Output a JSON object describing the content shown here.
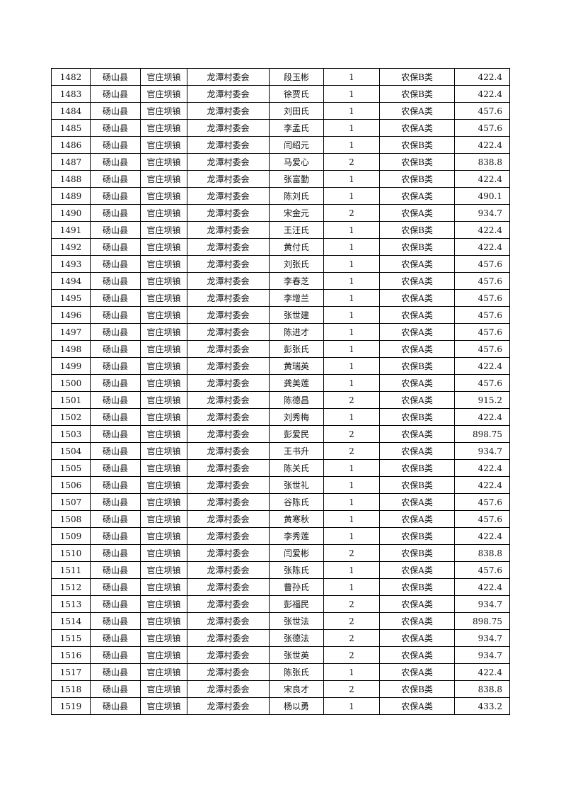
{
  "table": {
    "rows": [
      [
        "1482",
        "砀山县",
        "官庄坝镇",
        "龙潭村委会",
        "段玉彬",
        "1",
        "农保B类",
        "422.4"
      ],
      [
        "1483",
        "砀山县",
        "官庄坝镇",
        "龙潭村委会",
        "徐贾氏",
        "1",
        "农保B类",
        "422.4"
      ],
      [
        "1484",
        "砀山县",
        "官庄坝镇",
        "龙潭村委会",
        "刘田氏",
        "1",
        "农保A类",
        "457.6"
      ],
      [
        "1485",
        "砀山县",
        "官庄坝镇",
        "龙潭村委会",
        "李孟氏",
        "1",
        "农保A类",
        "457.6"
      ],
      [
        "1486",
        "砀山县",
        "官庄坝镇",
        "龙潭村委会",
        "闫绍元",
        "1",
        "农保B类",
        "422.4"
      ],
      [
        "1487",
        "砀山县",
        "官庄坝镇",
        "龙潭村委会",
        "马爱心",
        "2",
        "农保B类",
        "838.8"
      ],
      [
        "1488",
        "砀山县",
        "官庄坝镇",
        "龙潭村委会",
        "张富勤",
        "1",
        "农保B类",
        "422.4"
      ],
      [
        "1489",
        "砀山县",
        "官庄坝镇",
        "龙潭村委会",
        "陈刘氏",
        "1",
        "农保A类",
        "490.1"
      ],
      [
        "1490",
        "砀山县",
        "官庄坝镇",
        "龙潭村委会",
        "宋金元",
        "2",
        "农保A类",
        "934.7"
      ],
      [
        "1491",
        "砀山县",
        "官庄坝镇",
        "龙潭村委会",
        "王汪氏",
        "1",
        "农保B类",
        "422.4"
      ],
      [
        "1492",
        "砀山县",
        "官庄坝镇",
        "龙潭村委会",
        "黄付氏",
        "1",
        "农保B类",
        "422.4"
      ],
      [
        "1493",
        "砀山县",
        "官庄坝镇",
        "龙潭村委会",
        "刘张氏",
        "1",
        "农保A类",
        "457.6"
      ],
      [
        "1494",
        "砀山县",
        "官庄坝镇",
        "龙潭村委会",
        "李春芝",
        "1",
        "农保A类",
        "457.6"
      ],
      [
        "1495",
        "砀山县",
        "官庄坝镇",
        "龙潭村委会",
        "李增兰",
        "1",
        "农保A类",
        "457.6"
      ],
      [
        "1496",
        "砀山县",
        "官庄坝镇",
        "龙潭村委会",
        "张世建",
        "1",
        "农保A类",
        "457.6"
      ],
      [
        "1497",
        "砀山县",
        "官庄坝镇",
        "龙潭村委会",
        "陈进才",
        "1",
        "农保A类",
        "457.6"
      ],
      [
        "1498",
        "砀山县",
        "官庄坝镇",
        "龙潭村委会",
        "彭张氏",
        "1",
        "农保A类",
        "457.6"
      ],
      [
        "1499",
        "砀山县",
        "官庄坝镇",
        "龙潭村委会",
        "黄瑞英",
        "1",
        "农保B类",
        "422.4"
      ],
      [
        "1500",
        "砀山县",
        "官庄坝镇",
        "龙潭村委会",
        "龚美莲",
        "1",
        "农保A类",
        "457.6"
      ],
      [
        "1501",
        "砀山县",
        "官庄坝镇",
        "龙潭村委会",
        "陈德昌",
        "2",
        "农保A类",
        "915.2"
      ],
      [
        "1502",
        "砀山县",
        "官庄坝镇",
        "龙潭村委会",
        "刘秀梅",
        "1",
        "农保B类",
        "422.4"
      ],
      [
        "1503",
        "砀山县",
        "官庄坝镇",
        "龙潭村委会",
        "彭爱民",
        "2",
        "农保A类",
        "898.75"
      ],
      [
        "1504",
        "砀山县",
        "官庄坝镇",
        "龙潭村委会",
        "王书升",
        "2",
        "农保A类",
        "934.7"
      ],
      [
        "1505",
        "砀山县",
        "官庄坝镇",
        "龙潭村委会",
        "陈关氏",
        "1",
        "农保B类",
        "422.4"
      ],
      [
        "1506",
        "砀山县",
        "官庄坝镇",
        "龙潭村委会",
        "张世礼",
        "1",
        "农保B类",
        "422.4"
      ],
      [
        "1507",
        "砀山县",
        "官庄坝镇",
        "龙潭村委会",
        "谷陈氏",
        "1",
        "农保A类",
        "457.6"
      ],
      [
        "1508",
        "砀山县",
        "官庄坝镇",
        "龙潭村委会",
        "黄寒秋",
        "1",
        "农保A类",
        "457.6"
      ],
      [
        "1509",
        "砀山县",
        "官庄坝镇",
        "龙潭村委会",
        "李秀莲",
        "1",
        "农保B类",
        "422.4"
      ],
      [
        "1510",
        "砀山县",
        "官庄坝镇",
        "龙潭村委会",
        "闫爱彬",
        "2",
        "农保B类",
        "838.8"
      ],
      [
        "1511",
        "砀山县",
        "官庄坝镇",
        "龙潭村委会",
        "张陈氏",
        "1",
        "农保A类",
        "457.6"
      ],
      [
        "1512",
        "砀山县",
        "官庄坝镇",
        "龙潭村委会",
        "曹孙氏",
        "1",
        "农保B类",
        "422.4"
      ],
      [
        "1513",
        "砀山县",
        "官庄坝镇",
        "龙潭村委会",
        "彭福民",
        "2",
        "农保A类",
        "934.7"
      ],
      [
        "1514",
        "砀山县",
        "官庄坝镇",
        "龙潭村委会",
        "张世法",
        "2",
        "农保A类",
        "898.75"
      ],
      [
        "1515",
        "砀山县",
        "官庄坝镇",
        "龙潭村委会",
        "张德法",
        "2",
        "农保A类",
        "934.7"
      ],
      [
        "1516",
        "砀山县",
        "官庄坝镇",
        "龙潭村委会",
        "张世英",
        "2",
        "农保A类",
        "934.7"
      ],
      [
        "1517",
        "砀山县",
        "官庄坝镇",
        "龙潭村委会",
        "陈张氏",
        "1",
        "农保A类",
        "422.4"
      ],
      [
        "1518",
        "砀山县",
        "官庄坝镇",
        "龙潭村委会",
        "宋良才",
        "2",
        "农保B类",
        "838.8"
      ],
      [
        "1519",
        "砀山县",
        "官庄坝镇",
        "龙潭村委会",
        "杨以勇",
        "1",
        "农保A类",
        "433.2"
      ]
    ]
  }
}
